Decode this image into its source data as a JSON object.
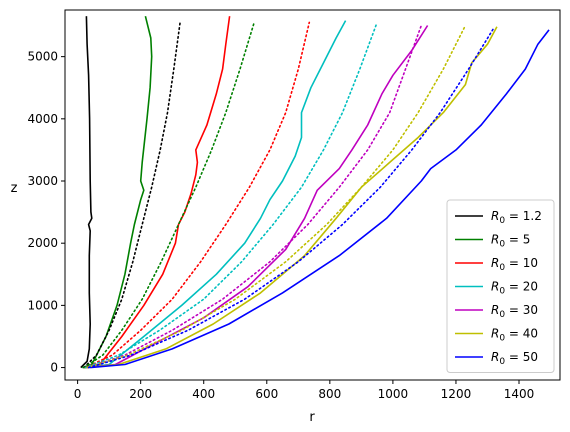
{
  "chart_data": {
    "type": "line",
    "title": "",
    "xlabel": "r",
    "ylabel": "z",
    "xlim": [
      -40,
      1530
    ],
    "ylim": [
      -200,
      5750
    ],
    "xticks": [
      0,
      200,
      400,
      600,
      800,
      1000,
      1200,
      1400
    ],
    "yticks": [
      0,
      1000,
      2000,
      3000,
      4000,
      5000
    ],
    "grid": false,
    "legend_position": "bottom-right",
    "series": [
      {
        "name": "R_0 = 1.2",
        "legend_label": "$R_0 = 1.2$",
        "color": "#000000",
        "style": "solid",
        "points": [
          [
            10,
            0
          ],
          [
            20,
            50
          ],
          [
            30,
            100
          ],
          [
            37,
            300
          ],
          [
            40,
            700
          ],
          [
            37,
            1200
          ],
          [
            37,
            1800
          ],
          [
            40,
            2200
          ],
          [
            35,
            2300
          ],
          [
            45,
            2400
          ],
          [
            42,
            2500
          ],
          [
            40,
            3000
          ],
          [
            38,
            4000
          ],
          [
            35,
            4700
          ],
          [
            30,
            5200
          ],
          [
            28,
            5650
          ]
        ]
      },
      {
        "name": "R_0 = 5",
        "legend_label": "$R_0 = 5$",
        "color": "#008000",
        "style": "solid",
        "points": [
          [
            15,
            0
          ],
          [
            45,
            50
          ],
          [
            90,
            500
          ],
          [
            125,
            1000
          ],
          [
            150,
            1500
          ],
          [
            168,
            2000
          ],
          [
            180,
            2300
          ],
          [
            200,
            2700
          ],
          [
            210,
            2850
          ],
          [
            200,
            3000
          ],
          [
            205,
            3300
          ],
          [
            220,
            4000
          ],
          [
            230,
            4500
          ],
          [
            235,
            5000
          ],
          [
            232,
            5300
          ],
          [
            215,
            5650
          ]
        ]
      },
      {
        "name": "R_0 = 10",
        "legend_label": "$R_0 = 10$",
        "color": "#ff0000",
        "style": "solid",
        "points": [
          [
            20,
            0
          ],
          [
            70,
            50
          ],
          [
            140,
            500
          ],
          [
            210,
            1000
          ],
          [
            270,
            1500
          ],
          [
            310,
            2000
          ],
          [
            320,
            2300
          ],
          [
            340,
            2500
          ],
          [
            360,
            2800
          ],
          [
            375,
            3100
          ],
          [
            380,
            3300
          ],
          [
            375,
            3500
          ],
          [
            410,
            3900
          ],
          [
            440,
            4400
          ],
          [
            460,
            4800
          ],
          [
            470,
            5200
          ],
          [
            482,
            5650
          ]
        ]
      },
      {
        "name": "R_0 = 20",
        "legend_label": "$R_0 = 20$",
        "color": "#00bfbf",
        "style": "solid",
        "points": [
          [
            25,
            0
          ],
          [
            100,
            50
          ],
          [
            210,
            500
          ],
          [
            330,
            1000
          ],
          [
            440,
            1500
          ],
          [
            530,
            2000
          ],
          [
            580,
            2400
          ],
          [
            610,
            2700
          ],
          [
            650,
            3000
          ],
          [
            690,
            3400
          ],
          [
            710,
            3700
          ],
          [
            710,
            4100
          ],
          [
            740,
            4500
          ],
          [
            780,
            4900
          ],
          [
            820,
            5300
          ],
          [
            850,
            5580
          ]
        ]
      },
      {
        "name": "R_0 = 30",
        "legend_label": "$R_0 = 30$",
        "color": "#bf00bf",
        "style": "solid",
        "points": [
          [
            30,
            0
          ],
          [
            120,
            50
          ],
          [
            250,
            400
          ],
          [
            400,
            800
          ],
          [
            540,
            1300
          ],
          [
            660,
            1900
          ],
          [
            720,
            2400
          ],
          [
            760,
            2850
          ],
          [
            830,
            3200
          ],
          [
            870,
            3500
          ],
          [
            920,
            3900
          ],
          [
            965,
            4400
          ],
          [
            1000,
            4700
          ],
          [
            1060,
            5100
          ],
          [
            1110,
            5500
          ]
        ]
      },
      {
        "name": "R_0 = 40",
        "legend_label": "$R_0 = 40$",
        "color": "#bfbf00",
        "style": "solid",
        "points": [
          [
            30,
            0
          ],
          [
            130,
            50
          ],
          [
            280,
            300
          ],
          [
            430,
            700
          ],
          [
            580,
            1200
          ],
          [
            720,
            1800
          ],
          [
            820,
            2400
          ],
          [
            900,
            2900
          ],
          [
            990,
            3300
          ],
          [
            1080,
            3700
          ],
          [
            1160,
            4100
          ],
          [
            1230,
            4550
          ],
          [
            1250,
            4900
          ],
          [
            1300,
            5200
          ],
          [
            1330,
            5480
          ]
        ]
      },
      {
        "name": "R_0 = 50",
        "legend_label": "$R_0 = 50$",
        "color": "#0000ff",
        "style": "solid",
        "points": [
          [
            40,
            0
          ],
          [
            150,
            50
          ],
          [
            300,
            300
          ],
          [
            480,
            700
          ],
          [
            650,
            1200
          ],
          [
            830,
            1800
          ],
          [
            980,
            2400
          ],
          [
            1090,
            3000
          ],
          [
            1120,
            3200
          ],
          [
            1200,
            3500
          ],
          [
            1280,
            3900
          ],
          [
            1360,
            4400
          ],
          [
            1420,
            4800
          ],
          [
            1460,
            5200
          ],
          [
            1495,
            5430
          ]
        ]
      },
      {
        "name": "dotted-black",
        "color": "#000000",
        "style": "dotted",
        "points": [
          [
            20,
            0
          ],
          [
            60,
            200
          ],
          [
            100,
            600
          ],
          [
            140,
            1100
          ],
          [
            175,
            1700
          ],
          [
            205,
            2300
          ],
          [
            235,
            2900
          ],
          [
            262,
            3500
          ],
          [
            285,
            4100
          ],
          [
            305,
            4800
          ],
          [
            325,
            5550
          ]
        ]
      },
      {
        "name": "dotted-green",
        "color": "#008000",
        "style": "dotted",
        "points": [
          [
            20,
            0
          ],
          [
            80,
            200
          ],
          [
            140,
            600
          ],
          [
            205,
            1100
          ],
          [
            265,
            1700
          ],
          [
            320,
            2300
          ],
          [
            375,
            2900
          ],
          [
            425,
            3500
          ],
          [
            470,
            4100
          ],
          [
            515,
            4800
          ],
          [
            560,
            5550
          ]
        ]
      },
      {
        "name": "dotted-red",
        "color": "#ff0000",
        "style": "dotted",
        "points": [
          [
            25,
            0
          ],
          [
            110,
            200
          ],
          [
            200,
            600
          ],
          [
            300,
            1100
          ],
          [
            390,
            1700
          ],
          [
            470,
            2300
          ],
          [
            545,
            2900
          ],
          [
            610,
            3500
          ],
          [
            660,
            4100
          ],
          [
            700,
            4800
          ],
          [
            735,
            5550
          ]
        ]
      },
      {
        "name": "dotted-cyan",
        "color": "#00bfbf",
        "style": "dotted",
        "points": [
          [
            25,
            0
          ],
          [
            130,
            200
          ],
          [
            260,
            600
          ],
          [
            400,
            1100
          ],
          [
            520,
            1700
          ],
          [
            620,
            2300
          ],
          [
            710,
            2900
          ],
          [
            780,
            3500
          ],
          [
            840,
            4100
          ],
          [
            895,
            4800
          ],
          [
            950,
            5550
          ]
        ]
      },
      {
        "name": "dotted-magenta",
        "color": "#bf00bf",
        "style": "dotted",
        "points": [
          [
            30,
            0
          ],
          [
            150,
            200
          ],
          [
            300,
            600
          ],
          [
            460,
            1100
          ],
          [
            610,
            1700
          ],
          [
            730,
            2300
          ],
          [
            830,
            2900
          ],
          [
            920,
            3500
          ],
          [
            990,
            4100
          ],
          [
            1040,
            4800
          ],
          [
            1090,
            5500
          ]
        ]
      },
      {
        "name": "dotted-olive",
        "color": "#bfbf00",
        "style": "dotted",
        "points": [
          [
            30,
            0
          ],
          [
            160,
            200
          ],
          [
            330,
            600
          ],
          [
            500,
            1100
          ],
          [
            660,
            1700
          ],
          [
            790,
            2300
          ],
          [
            900,
            2900
          ],
          [
            1000,
            3500
          ],
          [
            1080,
            4100
          ],
          [
            1160,
            4800
          ],
          [
            1230,
            5500
          ]
        ]
      },
      {
        "name": "dotted-blue",
        "color": "#0000ff",
        "style": "dotted",
        "points": [
          [
            35,
            0
          ],
          [
            170,
            200
          ],
          [
            350,
            600
          ],
          [
            530,
            1100
          ],
          [
            700,
            1700
          ],
          [
            840,
            2300
          ],
          [
            960,
            2900
          ],
          [
            1060,
            3500
          ],
          [
            1150,
            4100
          ],
          [
            1240,
            4800
          ],
          [
            1320,
            5460
          ]
        ]
      }
    ]
  }
}
